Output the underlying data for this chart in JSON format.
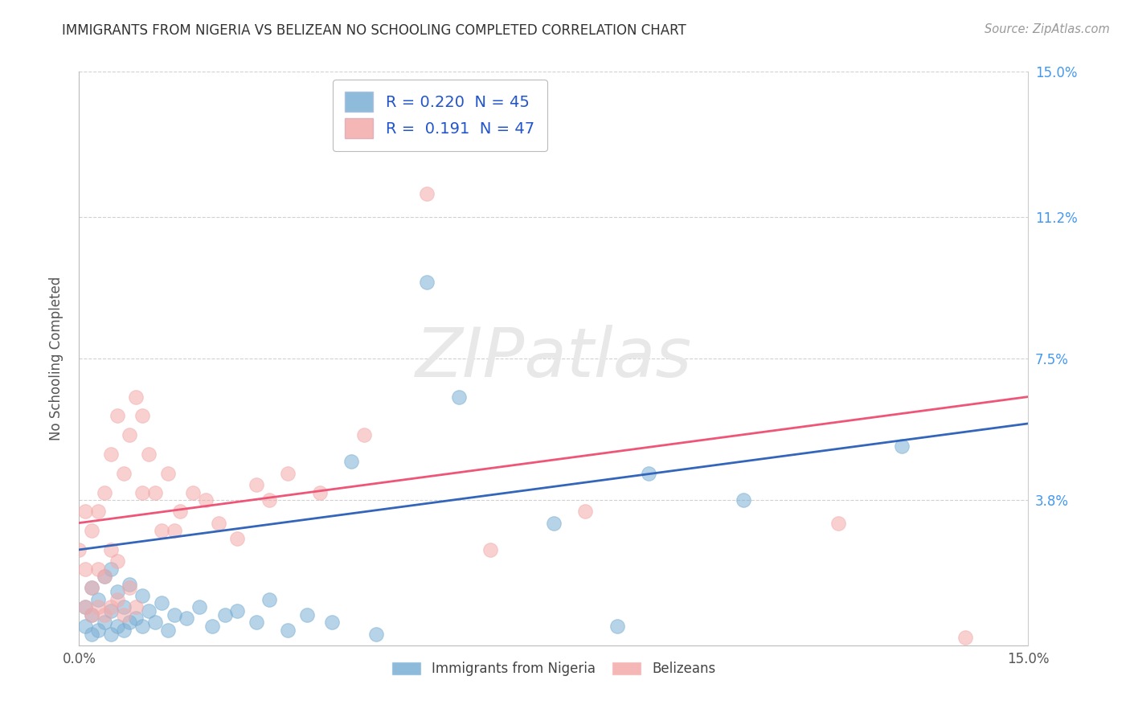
{
  "title": "IMMIGRANTS FROM NIGERIA VS BELIZEAN NO SCHOOLING COMPLETED CORRELATION CHART",
  "source": "Source: ZipAtlas.com",
  "ylabel": "No Schooling Completed",
  "xlim": [
    0.0,
    0.15
  ],
  "ylim": [
    0.0,
    0.15
  ],
  "nigeria_R": 0.22,
  "nigeria_N": 45,
  "belize_R": 0.191,
  "belize_N": 47,
  "nigeria_color": "#7BAFD4",
  "belize_color": "#F4AAAA",
  "nigeria_line_color": "#3366BB",
  "belize_line_color": "#EE5577",
  "legend_label_nigeria": "Immigrants from Nigeria",
  "legend_label_belize": "Belizeans",
  "ytick_vals": [
    0.038,
    0.075,
    0.112,
    0.15
  ],
  "ytick_labels": [
    "3.8%",
    "7.5%",
    "11.2%",
    "15.0%"
  ],
  "xtick_vals": [
    0.0,
    0.15
  ],
  "xtick_labels": [
    "0.0%",
    "15.0%"
  ],
  "grid_color": "#CCCCCC",
  "tick_color": "#4499EE",
  "title_color": "#333333",
  "source_color": "#999999",
  "axis_label_color": "#555555",
  "nigeria_line_y0": 0.025,
  "nigeria_line_y1": 0.058,
  "belize_line_y0": 0.032,
  "belize_line_y1": 0.065,
  "nigeria_x": [
    0.001,
    0.001,
    0.002,
    0.002,
    0.002,
    0.003,
    0.003,
    0.004,
    0.004,
    0.005,
    0.005,
    0.005,
    0.006,
    0.006,
    0.007,
    0.007,
    0.008,
    0.008,
    0.009,
    0.01,
    0.01,
    0.011,
    0.012,
    0.013,
    0.014,
    0.015,
    0.017,
    0.019,
    0.021,
    0.023,
    0.025,
    0.028,
    0.03,
    0.033,
    0.036,
    0.04,
    0.043,
    0.047,
    0.055,
    0.06,
    0.075,
    0.085,
    0.09,
    0.105,
    0.13
  ],
  "nigeria_y": [
    0.005,
    0.01,
    0.003,
    0.008,
    0.015,
    0.004,
    0.012,
    0.006,
    0.018,
    0.003,
    0.009,
    0.02,
    0.005,
    0.014,
    0.004,
    0.01,
    0.006,
    0.016,
    0.007,
    0.005,
    0.013,
    0.009,
    0.006,
    0.011,
    0.004,
    0.008,
    0.007,
    0.01,
    0.005,
    0.008,
    0.009,
    0.006,
    0.012,
    0.004,
    0.008,
    0.006,
    0.048,
    0.003,
    0.095,
    0.065,
    0.032,
    0.005,
    0.045,
    0.038,
    0.052
  ],
  "belize_x": [
    0.0,
    0.001,
    0.001,
    0.001,
    0.002,
    0.002,
    0.002,
    0.003,
    0.003,
    0.003,
    0.004,
    0.004,
    0.004,
    0.005,
    0.005,
    0.005,
    0.006,
    0.006,
    0.006,
    0.007,
    0.007,
    0.008,
    0.008,
    0.009,
    0.009,
    0.01,
    0.01,
    0.011,
    0.012,
    0.013,
    0.014,
    0.015,
    0.016,
    0.018,
    0.02,
    0.022,
    0.025,
    0.028,
    0.03,
    0.033,
    0.038,
    0.045,
    0.055,
    0.065,
    0.08,
    0.12,
    0.14
  ],
  "belize_y": [
    0.025,
    0.01,
    0.02,
    0.035,
    0.008,
    0.015,
    0.03,
    0.01,
    0.02,
    0.035,
    0.008,
    0.018,
    0.04,
    0.01,
    0.025,
    0.05,
    0.012,
    0.022,
    0.06,
    0.008,
    0.045,
    0.015,
    0.055,
    0.01,
    0.065,
    0.06,
    0.04,
    0.05,
    0.04,
    0.03,
    0.045,
    0.03,
    0.035,
    0.04,
    0.038,
    0.032,
    0.028,
    0.042,
    0.038,
    0.045,
    0.04,
    0.055,
    0.118,
    0.025,
    0.035,
    0.032,
    0.002
  ]
}
